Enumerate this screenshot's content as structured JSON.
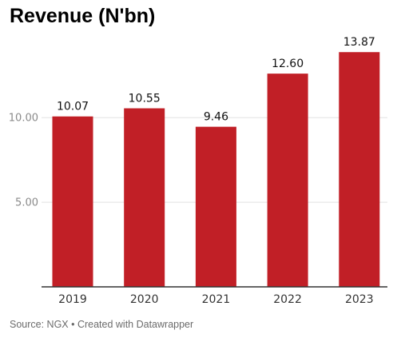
{
  "chart_data": {
    "type": "bar",
    "title": "Revenue (N'bn)",
    "categories": [
      "2019",
      "2020",
      "2021",
      "2022",
      "2023"
    ],
    "values": [
      10.07,
      10.55,
      9.46,
      12.6,
      13.87
    ],
    "value_labels": [
      "10.07",
      "10.55",
      "9.46",
      "12.60",
      "13.87"
    ],
    "yticks": [
      5,
      10
    ],
    "ytick_labels": [
      "5.00",
      "10.00"
    ],
    "ylim": [
      0,
      14
    ],
    "grid": true,
    "xlabel": "",
    "ylabel": "",
    "bar_color": "#c11f26"
  },
  "footer": {
    "source": "Source: NGX • Created with Datawrapper"
  }
}
